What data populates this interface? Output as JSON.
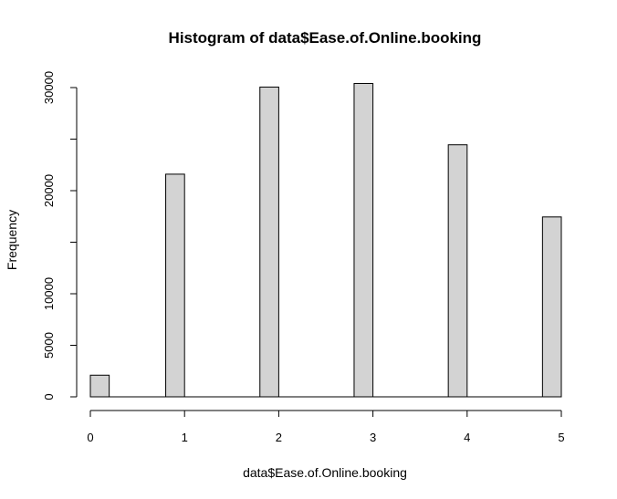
{
  "chart_data": {
    "type": "bar",
    "title": "Histogram of data$Ease.of.Online.booking",
    "xlabel": "data$Ease.of.Online.booking",
    "ylabel": "Frequency",
    "x_ticks": [
      "0",
      "1",
      "2",
      "3",
      "4",
      "5"
    ],
    "y_ticks": [
      "0",
      "5000",
      "10000",
      "20000",
      "30000"
    ],
    "xlim": [
      0,
      5
    ],
    "ylim": [
      0,
      30000
    ],
    "bins": [
      {
        "start": 0.0,
        "end": 0.2,
        "value": 2100
      },
      {
        "start": 0.8,
        "end": 1.0,
        "value": 21600
      },
      {
        "start": 1.8,
        "end": 2.0,
        "value": 30050
      },
      {
        "start": 2.8,
        "end": 3.0,
        "value": 30400
      },
      {
        "start": 3.8,
        "end": 4.0,
        "value": 24450
      },
      {
        "start": 4.8,
        "end": 5.0,
        "value": 17450
      }
    ],
    "bar_fill": "#d3d3d3",
    "bar_stroke": "#000000",
    "grid": false,
    "legend": "none"
  }
}
